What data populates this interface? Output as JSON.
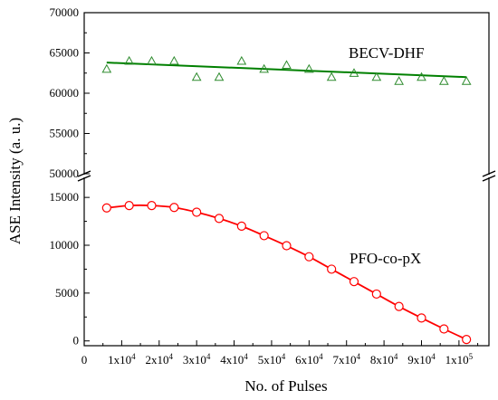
{
  "chart_data": {
    "type": "scatter",
    "xlabel": "No. of Pulses",
    "ylabel": "ASE Intensity (a. u.)",
    "xlim": [
      0,
      108000
    ],
    "y_broken_axis": true,
    "ylim_upper": [
      50000,
      70000
    ],
    "ylim_lower": [
      -500,
      17000
    ],
    "x_ticks": [
      {
        "value": 0,
        "label": "0"
      },
      {
        "value": 10000,
        "mantissa": "1x10",
        "exp": "4"
      },
      {
        "value": 20000,
        "mantissa": "2x10",
        "exp": "4"
      },
      {
        "value": 30000,
        "mantissa": "3x10",
        "exp": "4"
      },
      {
        "value": 40000,
        "mantissa": "4x10",
        "exp": "4"
      },
      {
        "value": 50000,
        "mantissa": "5x10",
        "exp": "4"
      },
      {
        "value": 60000,
        "mantissa": "6x10",
        "exp": "4"
      },
      {
        "value": 70000,
        "mantissa": "7x10",
        "exp": "4"
      },
      {
        "value": 80000,
        "mantissa": "8x10",
        "exp": "4"
      },
      {
        "value": 90000,
        "mantissa": "9x10",
        "exp": "4"
      },
      {
        "value": 100000,
        "mantissa": "1x10",
        "exp": "5"
      }
    ],
    "y_ticks_upper": [
      "50000",
      "55000",
      "60000",
      "65000",
      "70000"
    ],
    "y_ticks_lower": [
      "0",
      "5000",
      "10000",
      "15000"
    ],
    "series": [
      {
        "name": "BECV-DHF",
        "marker": "triangle",
        "color": "#2e8b2e",
        "x": [
          6000,
          12000,
          18000,
          24000,
          30000,
          36000,
          42000,
          48000,
          54000,
          60000,
          66000,
          72000,
          78000,
          84000,
          90000,
          96000,
          102000
        ],
        "y": [
          63000,
          64000,
          64000,
          64000,
          62000,
          62000,
          64000,
          63000,
          63500,
          63000,
          62000,
          62500,
          62000,
          61500,
          62000,
          61500,
          61500
        ],
        "fit": {
          "type": "linear",
          "x": [
            6000,
            102000
          ],
          "y": [
            63800,
            62000
          ],
          "color": "#008000"
        }
      },
      {
        "name": "PFO-co-pX",
        "marker": "circle",
        "color": "#ff0000",
        "x": [
          6000,
          12000,
          18000,
          24000,
          30000,
          36000,
          42000,
          48000,
          54000,
          60000,
          66000,
          72000,
          78000,
          84000,
          90000,
          96000,
          102000
        ],
        "y": [
          13900,
          14150,
          14150,
          13950,
          13450,
          12800,
          12000,
          11000,
          9950,
          8800,
          7500,
          6200,
          4900,
          3600,
          2400,
          1250,
          150
        ],
        "fit": {
          "type": "smooth",
          "color": "#ff0000"
        }
      }
    ]
  }
}
